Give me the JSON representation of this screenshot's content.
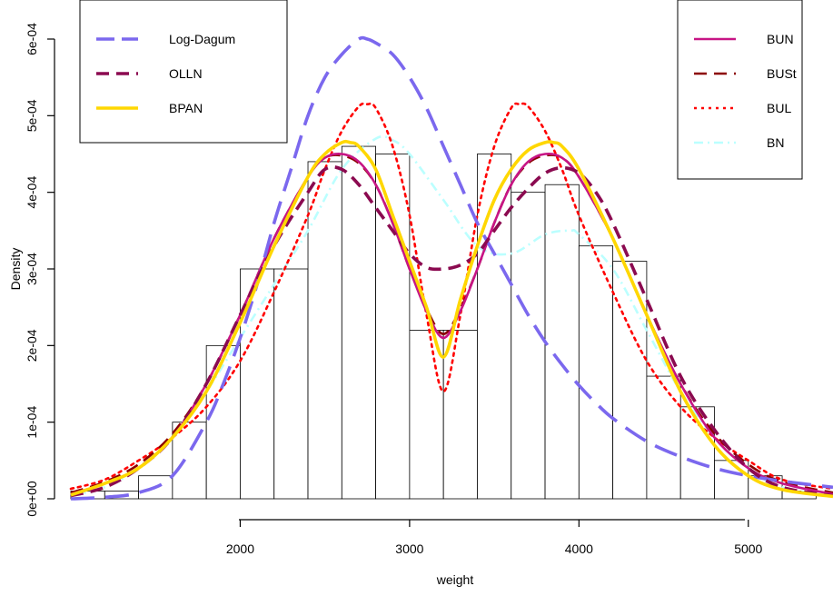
{
  "chart_data": {
    "type": "histogram-with-density-curves",
    "xlabel": "weight",
    "ylabel": "Density",
    "xlim": [
      1000,
      5500
    ],
    "ylim": [
      0,
      0.0006
    ],
    "x_ticks": [
      2000,
      3000,
      4000,
      5000
    ],
    "x_tick_labels": [
      "2000",
      "3000",
      "4000",
      "5000"
    ],
    "y_ticks": [
      0,
      0.0001,
      0.0002,
      0.0003,
      0.0004,
      0.0005,
      0.0006
    ],
    "y_tick_labels": [
      "0e+00",
      "1e-04",
      "2e-04",
      "3e-04",
      "4e-04",
      "5e-04",
      "6e-04"
    ],
    "histogram": {
      "bin_edges": [
        1000,
        1200,
        1400,
        1600,
        1800,
        2000,
        2200,
        2400,
        2600,
        2800,
        3000,
        3200,
        3400,
        3600,
        3800,
        4000,
        4200,
        4400,
        4600,
        4800,
        5000,
        5200,
        5400
      ],
      "densities": [
        1e-05,
        1e-05,
        3e-05,
        0.0001,
        0.0002,
        0.0003,
        0.0003,
        0.00044,
        0.00046,
        0.00045,
        0.00022,
        0.00022,
        0.00045,
        0.0004,
        0.00041,
        0.00033,
        0.00031,
        0.00016,
        0.00012,
        5e-05,
        3e-05,
        1e-05
      ],
      "fill": "#ffffff",
      "stroke": "#000000"
    },
    "series": [
      {
        "name": "Log-Dagum",
        "color": "#7b68ee",
        "dash": "long-dash",
        "x": [
          1000,
          1200,
          1400,
          1600,
          1800,
          1900,
          2000,
          2100,
          2200,
          2300,
          2400,
          2500,
          2600,
          2700,
          2750,
          2800,
          2900,
          3000,
          3100,
          3200,
          3300,
          3400,
          3500,
          3600,
          3700,
          3800,
          3900,
          4000,
          4100,
          4200,
          4400,
          4600,
          4800,
          5000,
          5200,
          5500
        ],
        "y": [
          0,
          2e-06,
          8e-06,
          3e-05,
          0.0001,
          0.00015,
          0.00021,
          0.00028,
          0.00036,
          0.00043,
          0.0005,
          0.00055,
          0.00058,
          0.0006,
          0.0006,
          0.000595,
          0.00058,
          0.00055,
          0.00051,
          0.00046,
          0.00041,
          0.00036,
          0.00032,
          0.00028,
          0.00024,
          0.000205,
          0.000175,
          0.000148,
          0.000125,
          0.000105,
          7.5e-05,
          5.5e-05,
          4e-05,
          3e-05,
          2.3e-05,
          1.5e-05
        ]
      },
      {
        "name": "OLLN",
        "color": "#8b0a50",
        "dash": "dashed",
        "x": [
          1000,
          1200,
          1400,
          1600,
          1800,
          2000,
          2200,
          2400,
          2500,
          2600,
          2700,
          2800,
          2900,
          3000,
          3100,
          3200,
          3300,
          3400,
          3500,
          3600,
          3700,
          3800,
          3900,
          4000,
          4100,
          4200,
          4400,
          4600,
          4800,
          5000,
          5200,
          5500
        ],
        "y": [
          4e-06,
          1.5e-05,
          4e-05,
          8e-05,
          0.00015,
          0.00024,
          0.00033,
          0.0004,
          0.00043,
          0.00043,
          0.00041,
          0.00038,
          0.00035,
          0.00032,
          0.000302,
          0.0003,
          0.000305,
          0.00032,
          0.00035,
          0.00038,
          0.000405,
          0.000425,
          0.000432,
          0.000425,
          0.0004,
          0.00036,
          0.00026,
          0.00016,
          9e-05,
          4e-05,
          1.5e-05,
          4e-06
        ]
      },
      {
        "name": "BPAN",
        "color": "#ffd700",
        "dash": "solid",
        "x": [
          1000,
          1200,
          1400,
          1600,
          1800,
          2000,
          2200,
          2400,
          2500,
          2600,
          2650,
          2700,
          2800,
          2900,
          3000,
          3100,
          3200,
          3300,
          3400,
          3500,
          3600,
          3700,
          3800,
          3850,
          3900,
          4000,
          4200,
          4400,
          4600,
          4800,
          5000,
          5200,
          5500
        ],
        "y": [
          5e-06,
          2e-05,
          4e-05,
          8e-05,
          0.00014,
          0.00023,
          0.00033,
          0.00042,
          0.00045,
          0.000465,
          0.000465,
          0.00046,
          0.00043,
          0.00037,
          0.00031,
          0.00025,
          0.000185,
          0.00026,
          0.00033,
          0.00039,
          0.00043,
          0.000455,
          0.000465,
          0.000465,
          0.00046,
          0.00043,
          0.00034,
          0.00024,
          0.00014,
          7e-05,
          3e-05,
          1.2e-05,
          3e-06
        ]
      },
      {
        "name": "BUN",
        "color": "#c71585",
        "dash": "solid",
        "x": [
          1000,
          1200,
          1400,
          1600,
          1800,
          2000,
          2200,
          2400,
          2500,
          2600,
          2700,
          2800,
          2900,
          3000,
          3100,
          3200,
          3300,
          3400,
          3500,
          3600,
          3700,
          3800,
          3900,
          4000,
          4200,
          4400,
          4600,
          4800,
          5000,
          5200,
          5500
        ],
        "y": [
          6e-06,
          2e-05,
          4e-05,
          8e-05,
          0.00015,
          0.00024,
          0.00034,
          0.00042,
          0.000445,
          0.00045,
          0.00044,
          0.00041,
          0.00036,
          0.0003,
          0.000245,
          0.00021,
          0.000245,
          0.0003,
          0.00036,
          0.00041,
          0.00044,
          0.00045,
          0.000445,
          0.00042,
          0.00034,
          0.00024,
          0.00015,
          8e-05,
          4e-05,
          2e-05,
          6e-06
        ]
      },
      {
        "name": "BUSt",
        "color": "#8b0000",
        "dash": "dashed",
        "x": [
          1000,
          1200,
          1400,
          1600,
          1800,
          2000,
          2200,
          2400,
          2500,
          2600,
          2700,
          2800,
          2900,
          3000,
          3100,
          3200,
          3300,
          3400,
          3500,
          3600,
          3700,
          3800,
          3900,
          4000,
          4200,
          4400,
          4600,
          4800,
          5000,
          5200,
          5500
        ],
        "y": [
          8e-06,
          2.2e-05,
          4.5e-05,
          8.5e-05,
          0.00015,
          0.00024,
          0.00034,
          0.00042,
          0.000445,
          0.000448,
          0.000438,
          0.00041,
          0.00036,
          0.0003,
          0.000248,
          0.000215,
          0.000248,
          0.0003,
          0.00036,
          0.00041,
          0.000438,
          0.000448,
          0.000445,
          0.00042,
          0.00034,
          0.00024,
          0.00015,
          8.5e-05,
          4.5e-05,
          2.2e-05,
          8e-06
        ]
      },
      {
        "name": "BUL",
        "color": "#ff0000",
        "dash": "dotted",
        "x": [
          1000,
          1200,
          1400,
          1600,
          1800,
          2000,
          2200,
          2400,
          2500,
          2600,
          2700,
          2750,
          2800,
          2900,
          3000,
          3100,
          3200,
          3300,
          3400,
          3500,
          3600,
          3650,
          3700,
          3800,
          3900,
          4000,
          4200,
          4400,
          4600,
          4800,
          5000,
          5200,
          5500
        ],
        "y": [
          1.3e-05,
          2.5e-05,
          5e-05,
          8e-05,
          0.00012,
          0.00018,
          0.00027,
          0.00037,
          0.00043,
          0.00048,
          0.000512,
          0.000515,
          0.00051,
          0.00046,
          0.00037,
          0.00024,
          0.00014,
          0.00024,
          0.00037,
          0.00046,
          0.00051,
          0.000515,
          0.000512,
          0.00048,
          0.00043,
          0.00037,
          0.00027,
          0.00018,
          0.00012,
          8e-05,
          5e-05,
          2.5e-05,
          1.3e-05
        ]
      },
      {
        "name": "BN",
        "color": "#bbffff",
        "dash": "dash-dot",
        "x": [
          1000,
          1200,
          1400,
          1600,
          1800,
          2000,
          2200,
          2400,
          2600,
          2800,
          2900,
          3000,
          3200,
          3400,
          3600,
          3800,
          3950,
          4000,
          4200,
          4400,
          4600,
          4800,
          5000,
          5200,
          5500
        ],
        "y": [
          4e-06,
          1.5e-05,
          4e-05,
          8e-05,
          0.00014,
          0.00021,
          0.00028,
          0.00035,
          0.00043,
          0.00047,
          0.000468,
          0.00045,
          0.00039,
          0.00033,
          0.00032,
          0.000345,
          0.00035,
          0.000345,
          0.0003,
          0.00022,
          0.00014,
          8e-05,
          4e-05,
          1.5e-05,
          4e-06
        ]
      }
    ],
    "legends": [
      {
        "position": "top-left",
        "entries": [
          "Log-Dagum",
          "OLLN",
          "BPAN"
        ]
      },
      {
        "position": "top-right",
        "entries": [
          "BUN",
          "BUSt",
          "BUL",
          "BN"
        ]
      }
    ]
  }
}
